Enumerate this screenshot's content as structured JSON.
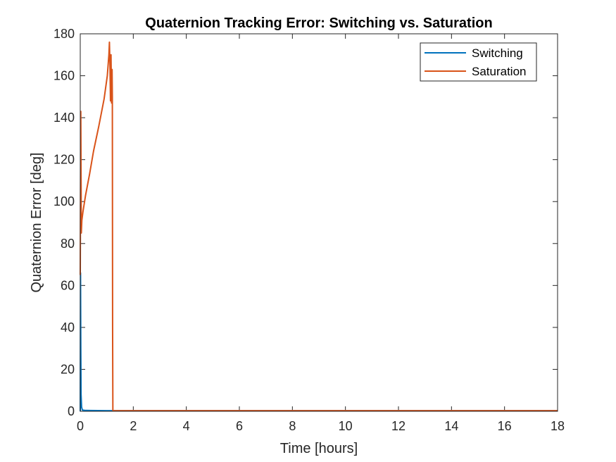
{
  "chart_data": {
    "type": "line",
    "title": "Quaternion Tracking Error: Switching vs. Saturation",
    "xlabel": "Time [hours]",
    "ylabel": "Quaternion Error [deg]",
    "xlim": [
      0,
      18
    ],
    "ylim": [
      0,
      180
    ],
    "xticks": [
      0,
      2,
      4,
      6,
      8,
      10,
      12,
      14,
      16,
      18
    ],
    "yticks": [
      0,
      20,
      40,
      60,
      80,
      100,
      120,
      140,
      160,
      180
    ],
    "grid": false,
    "legend_position": "top-right",
    "series": [
      {
        "name": "Switching",
        "color": "#0072BD",
        "x": [
          0,
          0.01,
          0.02,
          0.03,
          0.05,
          0.08,
          0.2,
          1,
          2,
          4,
          6,
          8,
          10,
          12,
          14,
          16,
          18
        ],
        "y": [
          0,
          66,
          30,
          8,
          2,
          0.6,
          0.4,
          0.3,
          0.3,
          0.3,
          0.3,
          0.3,
          0.3,
          0.3,
          0.3,
          0.3,
          0.3
        ]
      },
      {
        "name": "Saturation",
        "color": "#D95319",
        "x": [
          0,
          0.02,
          0.04,
          0.06,
          0.08,
          0.1,
          0.2,
          0.35,
          0.5,
          0.7,
          0.9,
          1.02,
          1.08,
          1.1,
          1.12,
          1.14,
          1.16,
          1.18,
          1.2,
          1.21,
          1.22,
          1.23,
          1.25,
          1.4,
          2,
          4,
          6,
          8,
          10,
          12,
          14,
          16,
          18
        ],
        "y": [
          65,
          143,
          85,
          91,
          93,
          95,
          103,
          113,
          124,
          136,
          149,
          160,
          170,
          176,
          165,
          148,
          170,
          147,
          163,
          150,
          40,
          0.5,
          0.3,
          0.3,
          0.3,
          0.3,
          0.3,
          0.3,
          0.3,
          0.3,
          0.3,
          0.3,
          0.3
        ]
      }
    ]
  }
}
